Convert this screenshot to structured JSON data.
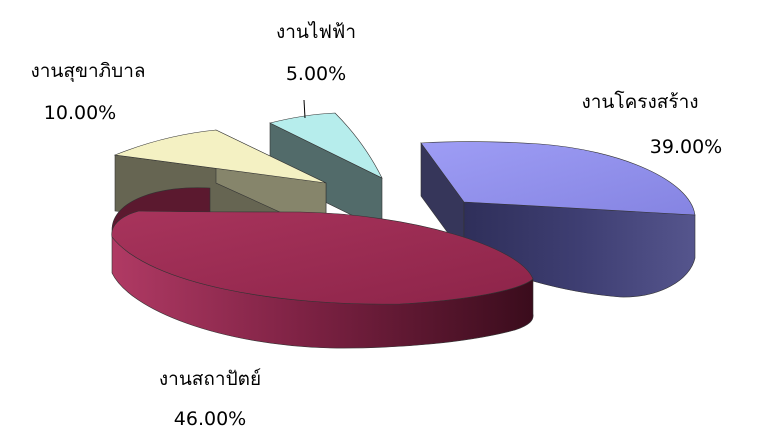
{
  "chart_data": {
    "type": "pie",
    "style": "3d-exploded",
    "title": "",
    "categories": [
      "งานโครงสร้าง",
      "งานสถาปัตย์",
      "งานสุขาภิบาล",
      "งานไฟฟ้า"
    ],
    "values": [
      39,
      46,
      10,
      5
    ],
    "value_labels": [
      "39.00%",
      "46.00%",
      "10.00%",
      "5.00%"
    ],
    "colors": {
      "งานโครงสร้าง": "#8E8DED",
      "งานสถาปัตย์": "#98294F",
      "งานสุขาภิบาล": "#F4F1C3",
      "งานไฟฟ้า": "#B6EDEC"
    },
    "legend": "none",
    "data_labels": "outside"
  }
}
